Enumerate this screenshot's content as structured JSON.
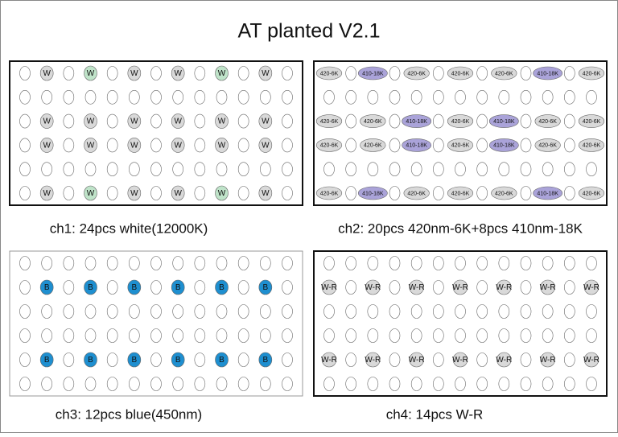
{
  "title": "AT planted V2.1",
  "panels": [
    {
      "caption": "ch1: 24pcs white(12000K)",
      "rows": [
        [
          null,
          {
            "label": "W",
            "color": "#d9d9d9"
          },
          null,
          {
            "label": "W",
            "color": "#bfe3c9"
          },
          null,
          {
            "label": "W",
            "color": "#d9d9d9"
          },
          null,
          {
            "label": "W",
            "color": "#d9d9d9"
          },
          null,
          {
            "label": "W",
            "color": "#bfe3c9"
          },
          null,
          {
            "label": "W",
            "color": "#d9d9d9"
          },
          null
        ],
        [
          null,
          null,
          null,
          null,
          null,
          null,
          null,
          null,
          null,
          null,
          null,
          null,
          null
        ],
        [
          null,
          {
            "label": "W",
            "color": "#d9d9d9"
          },
          null,
          {
            "label": "W",
            "color": "#d9d9d9"
          },
          null,
          {
            "label": "W",
            "color": "#d9d9d9"
          },
          null,
          {
            "label": "W",
            "color": "#d9d9d9"
          },
          null,
          {
            "label": "W",
            "color": "#d9d9d9"
          },
          null,
          {
            "label": "W",
            "color": "#d9d9d9"
          },
          null
        ],
        [
          null,
          {
            "label": "W",
            "color": "#d9d9d9"
          },
          null,
          {
            "label": "W",
            "color": "#d9d9d9"
          },
          null,
          {
            "label": "W",
            "color": "#d9d9d9"
          },
          null,
          {
            "label": "W",
            "color": "#d9d9d9"
          },
          null,
          {
            "label": "W",
            "color": "#d9d9d9"
          },
          null,
          {
            "label": "W",
            "color": "#d9d9d9"
          },
          null
        ],
        [
          null,
          null,
          null,
          null,
          null,
          null,
          null,
          null,
          null,
          null,
          null,
          null,
          null
        ],
        [
          null,
          {
            "label": "W",
            "color": "#d9d9d9"
          },
          null,
          {
            "label": "W",
            "color": "#bfe3c9"
          },
          null,
          {
            "label": "W",
            "color": "#d9d9d9"
          },
          null,
          {
            "label": "W",
            "color": "#d9d9d9"
          },
          null,
          {
            "label": "W",
            "color": "#bfe3c9"
          },
          null,
          {
            "label": "W",
            "color": "#d9d9d9"
          },
          null
        ]
      ]
    },
    {
      "caption": "ch2: 20pcs 420nm-6K+8pcs 410nm-18K",
      "rows": [
        [
          {
            "label": "420-6K",
            "color": "#d9d9d9"
          },
          null,
          {
            "label": "410-18K",
            "color": "#aaa3d9"
          },
          null,
          {
            "label": "420-6K",
            "color": "#d9d9d9"
          },
          null,
          {
            "label": "420-6K",
            "color": "#d9d9d9"
          },
          null,
          {
            "label": "420-6K",
            "color": "#d9d9d9"
          },
          null,
          {
            "label": "410-18K",
            "color": "#aaa3d9"
          },
          null,
          {
            "label": "420-6K",
            "color": "#d9d9d9"
          }
        ],
        [
          null,
          null,
          null,
          null,
          null,
          null,
          null,
          null,
          null,
          null,
          null,
          null,
          null
        ],
        [
          {
            "label": "420-6K",
            "color": "#d9d9d9"
          },
          null,
          {
            "label": "420-6K",
            "color": "#d9d9d9"
          },
          null,
          {
            "label": "410-18K",
            "color": "#aaa3d9"
          },
          null,
          {
            "label": "420-6K",
            "color": "#d9d9d9"
          },
          null,
          {
            "label": "410-18K",
            "color": "#aaa3d9"
          },
          null,
          {
            "label": "420-6K",
            "color": "#d9d9d9"
          },
          null,
          {
            "label": "420-6K",
            "color": "#d9d9d9"
          }
        ],
        [
          {
            "label": "420-6K",
            "color": "#d9d9d9"
          },
          null,
          {
            "label": "420-6K",
            "color": "#d9d9d9"
          },
          null,
          {
            "label": "410-18K",
            "color": "#aaa3d9"
          },
          null,
          {
            "label": "420-6K",
            "color": "#d9d9d9"
          },
          null,
          {
            "label": "410-18K",
            "color": "#aaa3d9"
          },
          null,
          {
            "label": "420-6K",
            "color": "#d9d9d9"
          },
          null,
          {
            "label": "420-6K",
            "color": "#d9d9d9"
          }
        ],
        [
          null,
          null,
          null,
          null,
          null,
          null,
          null,
          null,
          null,
          null,
          null,
          null,
          null
        ],
        [
          {
            "label": "420-6K",
            "color": "#d9d9d9"
          },
          null,
          {
            "label": "410-18K",
            "color": "#aaa3d9"
          },
          null,
          {
            "label": "420-6K",
            "color": "#d9d9d9"
          },
          null,
          {
            "label": "420-6K",
            "color": "#d9d9d9"
          },
          null,
          {
            "label": "420-6K",
            "color": "#d9d9d9"
          },
          null,
          {
            "label": "410-18K",
            "color": "#aaa3d9"
          },
          null,
          {
            "label": "420-6K",
            "color": "#d9d9d9"
          }
        ]
      ]
    },
    {
      "caption": "ch3: 12pcs blue(450nm)",
      "rows": [
        [
          null,
          null,
          null,
          null,
          null,
          null,
          null,
          null,
          null,
          null,
          null,
          null,
          null
        ],
        [
          null,
          {
            "label": "B",
            "color": "#1e8fd0"
          },
          null,
          {
            "label": "B",
            "color": "#1e8fd0"
          },
          null,
          {
            "label": "B",
            "color": "#1e8fd0"
          },
          null,
          {
            "label": "B",
            "color": "#1e8fd0"
          },
          null,
          {
            "label": "B",
            "color": "#1e8fd0"
          },
          null,
          {
            "label": "B",
            "color": "#1e8fd0"
          },
          null
        ],
        [
          null,
          null,
          null,
          null,
          null,
          null,
          null,
          null,
          null,
          null,
          null,
          null,
          null
        ],
        [
          null,
          null,
          null,
          null,
          null,
          null,
          null,
          null,
          null,
          null,
          null,
          null,
          null
        ],
        [
          null,
          {
            "label": "B",
            "color": "#1e8fd0"
          },
          null,
          {
            "label": "B",
            "color": "#1e8fd0"
          },
          null,
          {
            "label": "B",
            "color": "#1e8fd0"
          },
          null,
          {
            "label": "B",
            "color": "#1e8fd0"
          },
          null,
          {
            "label": "B",
            "color": "#1e8fd0"
          },
          null,
          {
            "label": "B",
            "color": "#1e8fd0"
          },
          null
        ],
        [
          null,
          null,
          null,
          null,
          null,
          null,
          null,
          null,
          null,
          null,
          null,
          null,
          null
        ]
      ]
    },
    {
      "caption": "ch4: 14pcs W-R",
      "rows": [
        [
          null,
          null,
          null,
          null,
          null,
          null,
          null,
          null,
          null,
          null,
          null,
          null,
          null
        ],
        [
          {
            "label": "W-R",
            "color": "#d9d9d9"
          },
          null,
          {
            "label": "W-R",
            "color": "#d9d9d9"
          },
          null,
          {
            "label": "W-R",
            "color": "#d9d9d9"
          },
          null,
          {
            "label": "W-R",
            "color": "#d9d9d9"
          },
          null,
          {
            "label": "W-R",
            "color": "#d9d9d9"
          },
          null,
          {
            "label": "W-R",
            "color": "#d9d9d9"
          },
          null,
          {
            "label": "W-R",
            "color": "#d9d9d9"
          }
        ],
        [
          null,
          null,
          null,
          null,
          null,
          null,
          null,
          null,
          null,
          null,
          null,
          null,
          null
        ],
        [
          null,
          null,
          null,
          null,
          null,
          null,
          null,
          null,
          null,
          null,
          null,
          null,
          null
        ],
        [
          {
            "label": "W-R",
            "color": "#d9d9d9"
          },
          null,
          {
            "label": "W-R",
            "color": "#d9d9d9"
          },
          null,
          {
            "label": "W-R",
            "color": "#d9d9d9"
          },
          null,
          {
            "label": "W-R",
            "color": "#d9d9d9"
          },
          null,
          {
            "label": "W-R",
            "color": "#d9d9d9"
          },
          null,
          {
            "label": "W-R",
            "color": "#d9d9d9"
          },
          null,
          {
            "label": "W-R",
            "color": "#d9d9d9"
          }
        ],
        [
          null,
          null,
          null,
          null,
          null,
          null,
          null,
          null,
          null,
          null,
          null,
          null,
          null
        ]
      ]
    }
  ]
}
